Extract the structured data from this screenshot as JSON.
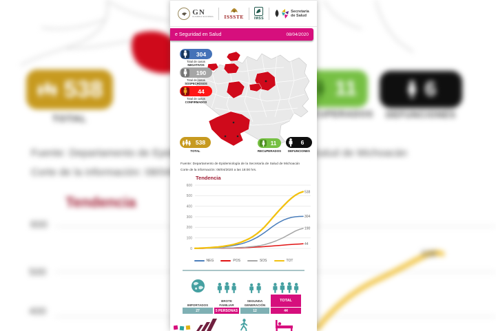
{
  "header": {
    "logos": {
      "gn": "GN",
      "gn_sub": "GUARDIA NACIONAL",
      "issste": "ISSSTE",
      "imss": "IMSS",
      "salud_line1": "Secretaría",
      "salud_line2": "de Salud"
    },
    "banner": {
      "title": "e Seguridad en Salud",
      "date": "08/04/2020"
    }
  },
  "cases": {
    "pills": [
      {
        "value": "304",
        "caption": "Total de casos",
        "name": "NEGATIVOS"
      },
      {
        "value": "190",
        "caption": "Total de casos",
        "name": "SOSPECHOSOS"
      },
      {
        "value": "44",
        "caption": "Total de casos",
        "name": "CONFIRMADOS"
      }
    ]
  },
  "totals": {
    "total": {
      "value": "538",
      "label": "TOTAL"
    },
    "recuperados": {
      "value": "11",
      "label": "RECUPERADOS"
    },
    "defunciones": {
      "value": "6",
      "label": "DEFUNCIONES"
    }
  },
  "fuente": {
    "line1": "Fuente: Departamento de Epidemiología de la Secretaría de Salud de Michoacán",
    "line2": "Corte de la información: 08/04/2020 a las 18:00 hrs."
  },
  "chart_data": {
    "type": "line",
    "title": "Tendencia",
    "x": [
      1,
      2,
      3,
      4,
      5,
      6,
      7,
      8,
      9,
      10,
      11,
      12,
      13,
      14,
      15,
      16,
      17,
      18,
      19,
      20,
      21,
      22,
      23,
      24,
      25,
      26,
      27,
      28,
      29
    ],
    "ylim": [
      0,
      600
    ],
    "yticks": [
      0,
      100,
      200,
      300,
      400,
      500,
      600
    ],
    "grid": true,
    "legend_position": "bottom",
    "series": [
      {
        "name": "NEG",
        "color": "#4a7ebb",
        "end_label": "304",
        "values": [
          1,
          2,
          3,
          4,
          6,
          8,
          10,
          13,
          17,
          22,
          28,
          35,
          44,
          55,
          68,
          84,
          103,
          125,
          150,
          177,
          205,
          230,
          252,
          270,
          284,
          294,
          300,
          303,
          304
        ]
      },
      {
        "name": "POS",
        "color": "#e01212",
        "end_label": "44",
        "values": [
          0,
          0,
          0,
          1,
          1,
          1,
          2,
          2,
          3,
          3,
          4,
          5,
          6,
          8,
          9,
          11,
          13,
          15,
          17,
          20,
          23,
          26,
          29,
          32,
          35,
          38,
          40,
          42,
          44
        ]
      },
      {
        "name": "SOS",
        "color": "#a6a6a6",
        "end_label": "190",
        "values": [
          0,
          0,
          1,
          1,
          1,
          2,
          2,
          3,
          4,
          5,
          6,
          8,
          10,
          12,
          15,
          18,
          22,
          28,
          36,
          46,
          58,
          72,
          88,
          105,
          125,
          145,
          165,
          180,
          190
        ]
      },
      {
        "name": "TOT",
        "color": "#f2c110",
        "end_label": "538",
        "values": [
          1,
          2,
          4,
          6,
          8,
          11,
          14,
          18,
          24,
          30,
          38,
          48,
          60,
          75,
          92,
          113,
          138,
          168,
          203,
          243,
          286,
          328,
          369,
          407,
          444,
          477,
          505,
          525,
          538
        ]
      }
    ]
  },
  "transmission": {
    "items": [
      {
        "icon": "globe-icon",
        "label": "IMPORTADOS",
        "label2": "",
        "value": "27"
      },
      {
        "icon": "family-group-icon",
        "label": "BROTE",
        "label2": "FAMILIAR",
        "value": "5 PERSONAS"
      },
      {
        "icon": "two-people-icon",
        "label": "SEGUNDA",
        "label2": "GENERACIÓN",
        "value": "12"
      },
      {
        "icon": "four-people-icon",
        "label": "TOTAL",
        "label2": "",
        "value": "44"
      }
    ]
  },
  "colors": {
    "accent_pink": "#d60f7d",
    "negativos_blue": "#4472b8",
    "sospechosos_gray": "#a6a6a6",
    "confirmados_red": "#ff1616",
    "total_gold": "#c79a1f",
    "recuperados_green": "#76c043",
    "defunciones_black": "#0f0f0f",
    "map_red": "#cf0a1b",
    "teal": "#45a0a1",
    "title_maroon": "#9e1b32"
  }
}
